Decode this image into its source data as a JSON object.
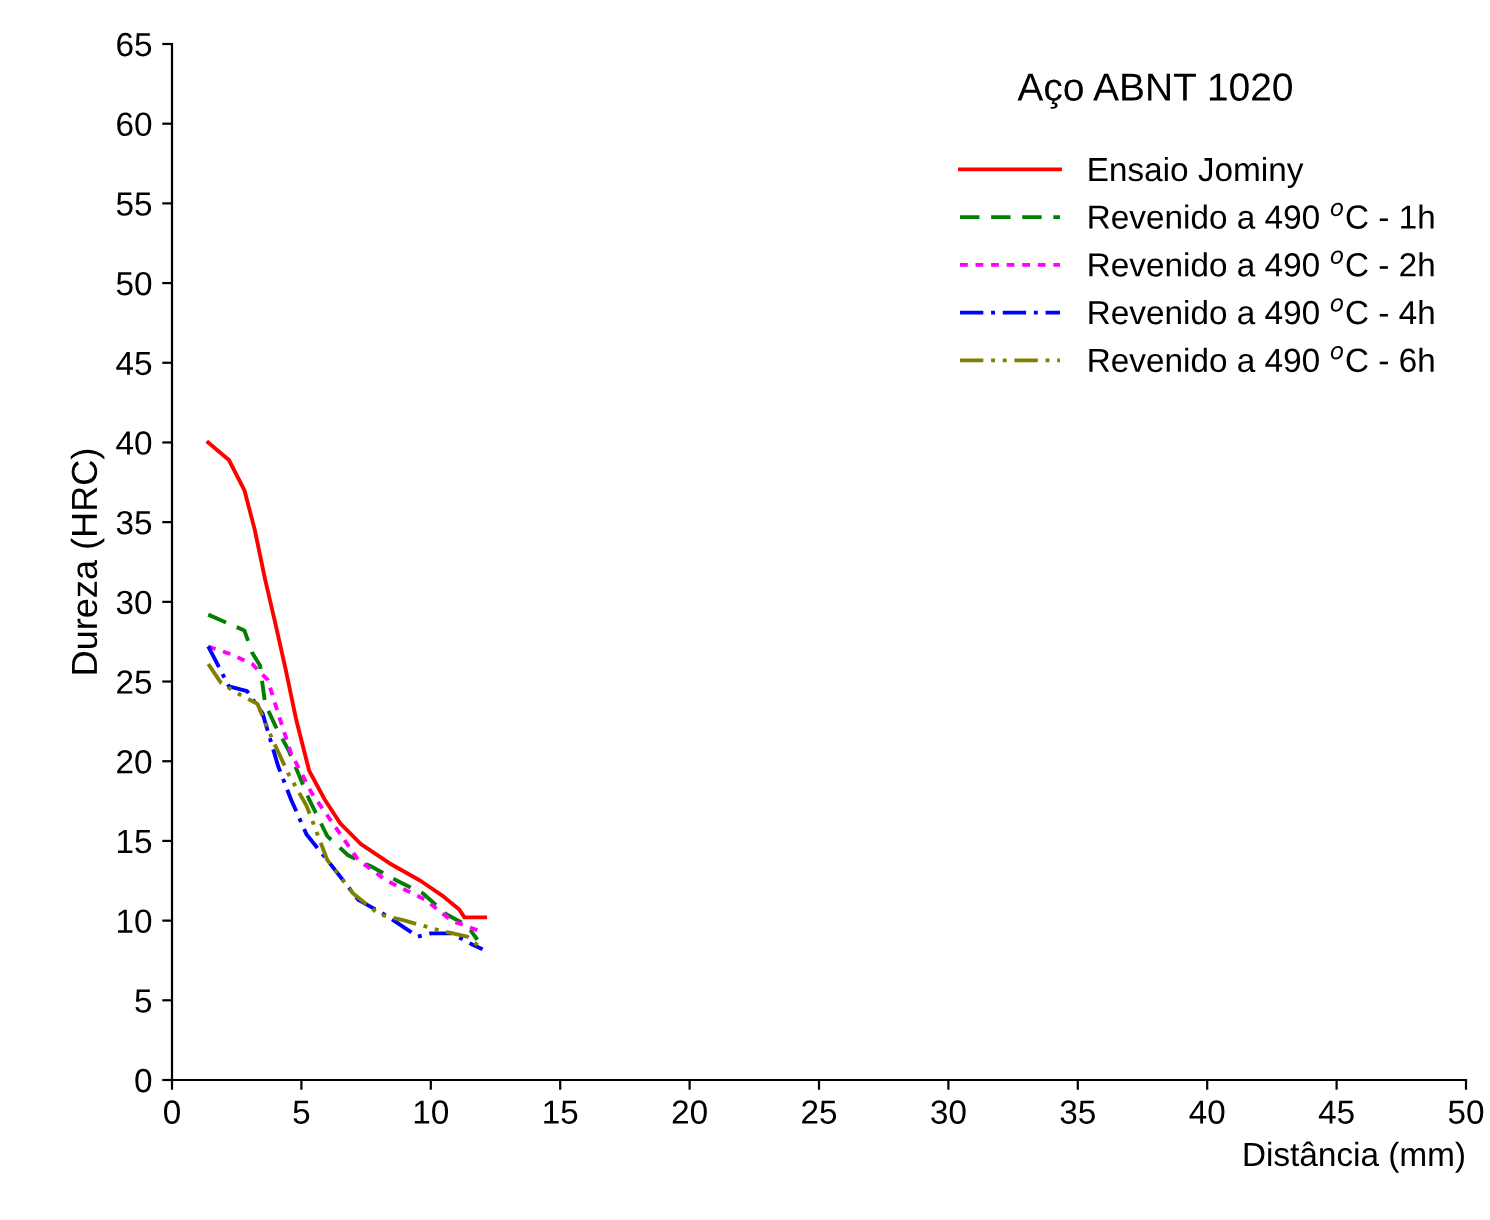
{
  "chart_data": {
    "type": "line",
    "title": "Aço ABNT 1020",
    "xlabel": "Distância (mm)",
    "ylabel": "Dureza (HRC)",
    "xlim": [
      0,
      50
    ],
    "xticks": [
      0,
      5,
      10,
      15,
      20,
      25,
      30,
      35,
      40,
      45,
      50
    ],
    "ylim": [
      0,
      65
    ],
    "yticks": [
      0,
      5,
      10,
      15,
      20,
      25,
      30,
      35,
      40,
      45,
      50,
      55,
      60,
      65
    ],
    "grid": false,
    "legend": "top right",
    "marker": "none",
    "series": [
      {
        "name": "Ensaio Jominy",
        "color": "#ff0000",
        "line_style": "solid",
        "x": [
          1.4,
          2.2,
          2.8,
          3.2,
          3.6,
          4.0,
          4.4,
          4.8,
          5.3,
          5.9,
          6.5,
          7.3,
          8.4,
          9.6,
          10.5,
          11.1,
          11.3,
          12.1
        ],
        "values": [
          40,
          38.9,
          37,
          34.5,
          31.4,
          28.6,
          25.7,
          22.6,
          19.4,
          17.6,
          16.1,
          14.8,
          13.6,
          12.5,
          11.5,
          10.7,
          10.2,
          10.2
        ]
      },
      {
        "name": "Revenido a 490 $^{o}$C - 1h",
        "color": "#008000",
        "line_style": "dashed",
        "x": [
          1.4,
          2.8,
          3.1,
          3.4,
          3.6,
          4.0,
          4.5,
          5.3,
          6.0,
          6.8,
          7.7,
          8.7,
          9.7,
          10.6,
          11.4,
          11.8
        ],
        "values": [
          29.2,
          28.2,
          26.8,
          26,
          23.6,
          22.2,
          20.7,
          17.6,
          15.3,
          14.1,
          13.4,
          12.5,
          11.7,
          10.4,
          9.7,
          8.8
        ]
      },
      {
        "name": "Revenido a 490 $^{o}$C - 2h",
        "color": "#ff00ff",
        "line_style": "dotted",
        "x": [
          1.4,
          2.3,
          3.1,
          3.7,
          4.1,
          4.6,
          5.4,
          6.3,
          7.2,
          8.3,
          9.8,
          10.8,
          11.8
        ],
        "values": [
          27.2,
          26.7,
          26.1,
          25.1,
          23,
          20.5,
          18,
          15.9,
          13.8,
          12.5,
          11.3,
          10,
          9.4
        ]
      },
      {
        "name": "Revenido a 490 $^{o}$C - 4h",
        "color": "#0000ff",
        "line_style": "dashdot",
        "x": [
          1.4,
          2.2,
          2.9,
          3.5,
          4.1,
          4.6,
          5.2,
          6.0,
          7.2,
          8.3,
          9.5,
          10.0,
          10.8,
          11.6,
          12.0
        ],
        "values": [
          27.2,
          24.7,
          24.4,
          23,
          19.7,
          17.6,
          15.4,
          13.8,
          11.3,
          10.3,
          9,
          9.2,
          9.2,
          8.5,
          8.2
        ]
      },
      {
        "name": "Revenido a 490 $^{o}$C - 6h",
        "color": "#808000",
        "line_style": "dashdotdot",
        "x": [
          1.4,
          1.9,
          2.6,
          3.3,
          3.9,
          4.5,
          5.2,
          6.0,
          7.0,
          8.0,
          9.0,
          10.3,
          11.4,
          12.0
        ],
        "values": [
          26.1,
          24.9,
          24.2,
          23.6,
          21.3,
          19.2,
          17.2,
          13.8,
          11.7,
          10.4,
          10,
          9.4,
          9,
          8.2
        ]
      }
    ]
  }
}
